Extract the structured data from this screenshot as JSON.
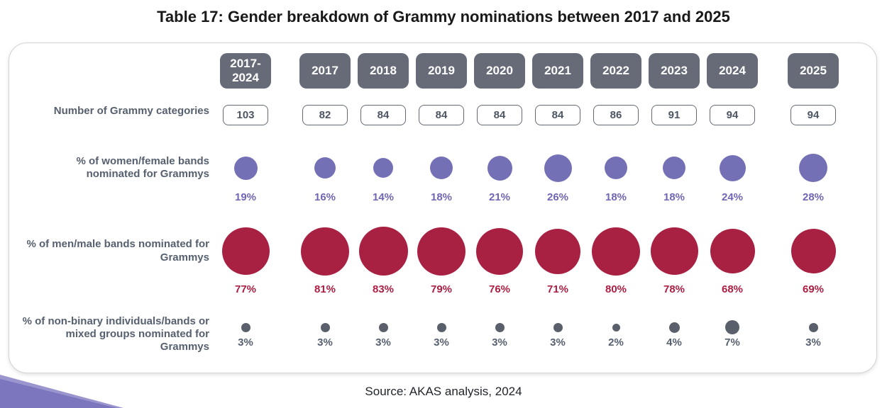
{
  "page": {
    "source_note": "Source: AKAS analysis, 2024"
  },
  "chart_data": {
    "type": "table",
    "title": "Table 17: Gender breakdown of Grammy nominations between 2017 and 2025",
    "columns": [
      "2017-2024",
      "2017",
      "2018",
      "2019",
      "2020",
      "2021",
      "2022",
      "2023",
      "2024",
      "2025"
    ],
    "rows": {
      "categories": {
        "label": "Number of Grammy categories",
        "values": [
          103,
          82,
          84,
          84,
          84,
          84,
          86,
          91,
          94,
          94
        ]
      },
      "women": {
        "label": "% of women/female bands nominated for Grammys",
        "unit": "%",
        "values": [
          19,
          16,
          14,
          18,
          21,
          26,
          18,
          18,
          24,
          28
        ]
      },
      "men": {
        "label": "% of men/male bands nominated for Grammys",
        "unit": "%",
        "values": [
          77,
          81,
          83,
          79,
          76,
          71,
          80,
          78,
          68,
          69
        ]
      },
      "nonbinary": {
        "label": "% of non-binary individuals/bands or mixed groups nominated for Grammys",
        "unit": "%",
        "values": [
          3,
          3,
          3,
          3,
          3,
          3,
          2,
          4,
          7,
          3
        ]
      }
    },
    "colors": {
      "year_badge": "#666b77",
      "women_bubble": "#7470b6",
      "men_bubble": "#a82142",
      "nonbinary_bubble": "#5a606b",
      "row_label": "#56606f"
    }
  }
}
